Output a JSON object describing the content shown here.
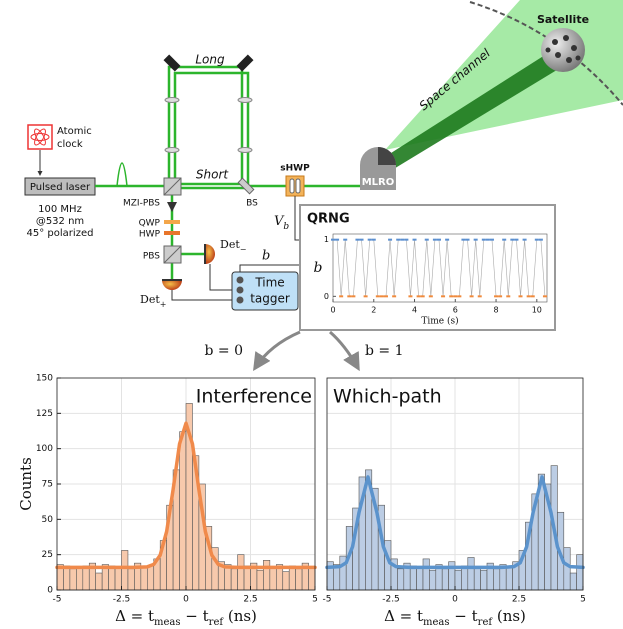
{
  "diagram": {
    "satellite": "Satellite",
    "space_channel": "Space channel",
    "long": "Long",
    "short": "Short",
    "atomic_clock": [
      "Atomic",
      "clock"
    ],
    "pulsed_laser": "Pulsed laser",
    "laser_specs": [
      "100 MHz",
      "@532 nm",
      "45° polarized"
    ],
    "mzi_pbs": "MZI-PBS",
    "bs": "BS",
    "shwp": "sHWP",
    "mlro": "MLRO",
    "qwp": "QWP",
    "hwp": "HWP",
    "pbs": "PBS",
    "det_minus": [
      "Det",
      "−"
    ],
    "det_plus": [
      "Det",
      "+"
    ],
    "time_tagger": [
      "Time",
      "tagger"
    ],
    "vb": [
      "V",
      "b"
    ],
    "b": "b",
    "qrng": "QRNG",
    "b0": "b = 0",
    "b1": "b = 1"
  },
  "chart_data": [
    {
      "type": "line",
      "xlabel": "Time (s)",
      "ylabel": "b",
      "x": [
        0,
        0.2,
        0.4,
        0.6,
        0.8,
        1,
        1.2,
        1.4,
        1.6,
        1.8,
        2,
        2.2,
        2.4,
        2.6,
        2.8,
        3,
        3.2,
        3.4,
        3.6,
        3.8,
        4,
        4.2,
        4.4,
        4.6,
        4.8,
        5,
        5.2,
        5.4,
        5.6,
        5.8,
        6,
        6.2,
        6.4,
        6.6,
        6.8,
        7,
        7.2,
        7.4,
        7.6,
        7.8,
        8,
        8.2,
        8.4,
        8.6,
        8.8,
        9,
        9.2,
        9.4,
        9.6,
        9.8,
        10,
        10.2,
        10.4
      ],
      "values": [
        1,
        1,
        0,
        1,
        0,
        0,
        1,
        1,
        0,
        1,
        1,
        0,
        0,
        0,
        1,
        0,
        1,
        1,
        1,
        0,
        1,
        0,
        0,
        1,
        0,
        1,
        1,
        0,
        1,
        0,
        0,
        0,
        1,
        1,
        0,
        1,
        0,
        1,
        1,
        1,
        0,
        0,
        1,
        0,
        1,
        1,
        0,
        1,
        0,
        0,
        1,
        1,
        0
      ],
      "color": "#aaaaaa",
      "marker_colors": [
        "#f08a3c",
        "#5b8fd0"
      ],
      "xlim": [
        0,
        10.5
      ],
      "ylim": [
        -0.1,
        1.1
      ],
      "xticks": [
        0,
        2,
        4,
        6,
        8,
        10
      ],
      "yticks": [
        0,
        1
      ]
    },
    {
      "type": "histogram",
      "title": "Interference",
      "xlabel": [
        "Δ = t",
        "meas",
        " − t",
        "ref",
        " (ns)"
      ],
      "ylabel": "Counts",
      "bins": [
        -5,
        -4.75,
        -4.5,
        -4.25,
        -4,
        -3.75,
        -3.5,
        -3.25,
        -3,
        -2.75,
        -2.5,
        -2.25,
        -2,
        -1.75,
        -1.5,
        -1.25,
        -1,
        -0.75,
        -0.5,
        -0.25,
        0,
        0.25,
        0.5,
        0.75,
        1,
        1.25,
        1.5,
        1.75,
        2,
        2.25,
        2.5,
        2.75,
        3,
        3.25,
        3.5,
        3.75,
        4,
        4.25,
        4.5,
        4.75,
        5
      ],
      "values": [
        18,
        17,
        15,
        16,
        17,
        19,
        12,
        18,
        17,
        16,
        28,
        15,
        19,
        16,
        17,
        22,
        35,
        60,
        85,
        112,
        132,
        95,
        75,
        45,
        30,
        20,
        18,
        15,
        25,
        17,
        19,
        14,
        21,
        16,
        18,
        13,
        17,
        15,
        19,
        16
      ],
      "color": "#f7c9ac",
      "fit": {
        "x": [
          -5,
          -2,
          -1.5,
          -1.25,
          -1,
          -0.75,
          -0.5,
          -0.25,
          0,
          0.25,
          0.5,
          0.75,
          1,
          1.25,
          1.5,
          2,
          5
        ],
        "values": [
          16,
          16,
          16.4,
          18.1,
          24.7,
          41.4,
          71,
          103.4,
          118,
          103.4,
          71,
          41.4,
          24.7,
          18.1,
          16.4,
          16,
          16
        ],
        "color": "#f08a4b"
      },
      "xlim": [
        -5,
        5
      ],
      "ylim": [
        0,
        150
      ],
      "xticks": [
        -5,
        -2.5,
        0,
        2.5,
        5
      ],
      "yticks": [
        0,
        25,
        50,
        75,
        100,
        125,
        150
      ],
      "grid": true,
      "ytick_labels": true
    },
    {
      "type": "histogram",
      "title": "Which-path",
      "xlabel": [
        "Δ = t",
        "meas",
        " − t",
        "ref",
        " (ns)"
      ],
      "bins": [
        -5,
        -4.75,
        -4.5,
        -4.25,
        -4,
        -3.75,
        -3.5,
        -3.25,
        -3,
        -2.75,
        -2.5,
        -2.25,
        -2,
        -1.75,
        -1.5,
        -1.25,
        -1,
        -0.75,
        -0.5,
        -0.25,
        0,
        0.25,
        0.5,
        0.75,
        1,
        1.25,
        1.5,
        1.75,
        2,
        2.25,
        2.5,
        2.75,
        3,
        3.25,
        3.5,
        3.75,
        4,
        4.25,
        4.5,
        4.75,
        5
      ],
      "values": [
        20,
        18,
        24,
        45,
        58,
        80,
        85,
        72,
        60,
        35,
        22,
        15,
        19,
        17,
        16,
        22,
        14,
        18,
        15,
        20,
        14,
        17,
        23,
        16,
        14,
        19,
        15,
        18,
        16,
        20,
        28,
        48,
        68,
        82,
        75,
        88,
        55,
        30,
        12,
        25
      ],
      "color": "#bccde4",
      "fit": {
        "x": [
          -5,
          -4.5,
          -4.25,
          -4,
          -3.75,
          -3.4,
          -3.05,
          -2.8,
          -2.55,
          -2.3,
          -1.8,
          1.8,
          2.3,
          2.55,
          2.8,
          3.05,
          3.4,
          3.75,
          4,
          4.25,
          4.5,
          5
        ],
        "values": [
          16,
          16.5,
          19.3,
          30.7,
          54.8,
          80,
          54.8,
          30.7,
          19.3,
          16.5,
          16,
          16,
          16.5,
          19.3,
          30.7,
          54.8,
          80,
          54.8,
          30.7,
          19.3,
          16.5,
          16
        ],
        "color": "#5b93cc"
      },
      "xlim": [
        -5,
        5
      ],
      "ylim": [
        0,
        150
      ],
      "xticks": [
        -5,
        -2.5,
        0,
        2.5,
        5
      ],
      "yticks": [
        0,
        25,
        50,
        75,
        100,
        125,
        150
      ],
      "grid": true,
      "ytick_labels": false
    }
  ]
}
